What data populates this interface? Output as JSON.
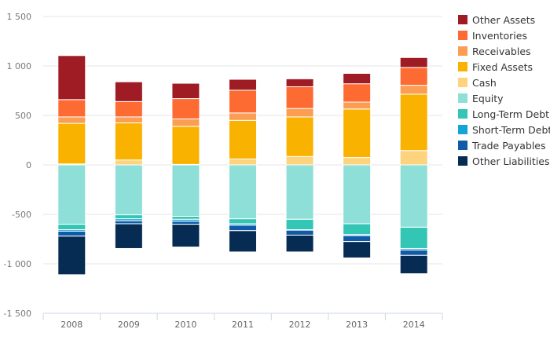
{
  "chart_data": {
    "type": "bar",
    "stacked": true,
    "categories": [
      "2008",
      "2009",
      "2010",
      "2011",
      "2012",
      "2013",
      "2014"
    ],
    "ylim": [
      -1500,
      1500
    ],
    "yticks": [
      1500,
      1000,
      500,
      0,
      -500,
      -1000,
      -1500
    ],
    "ytick_labels": [
      "1 500",
      "1 000",
      "500",
      "0",
      "-500",
      "-1 000",
      "-1 500"
    ],
    "grid": true,
    "legend_position": "right",
    "series": [
      {
        "name": "Cash",
        "color": "#fdd37e",
        "values": [
          10,
          50,
          5,
          60,
          85,
          75,
          145
        ]
      },
      {
        "name": "Fixed Assets",
        "color": "#f9b200",
        "values": [
          410,
          375,
          385,
          390,
          400,
          490,
          570
        ]
      },
      {
        "name": "Receivables",
        "color": "#fb9d52",
        "values": [
          65,
          60,
          75,
          75,
          85,
          70,
          90
        ]
      },
      {
        "name": "Inventories",
        "color": "#fd6b33",
        "values": [
          175,
          155,
          205,
          230,
          220,
          185,
          180
        ]
      },
      {
        "name": "Other Assets",
        "color": "#a01c25",
        "values": [
          445,
          200,
          155,
          110,
          80,
          105,
          100
        ]
      },
      {
        "name": "Equity",
        "color": "#8ddfd8",
        "values": [
          -600,
          -505,
          -520,
          -545,
          -550,
          -595,
          -630
        ]
      },
      {
        "name": "Long-Term Debt",
        "color": "#33c6b5",
        "values": [
          -55,
          -40,
          -30,
          -50,
          -105,
          -110,
          -215
        ]
      },
      {
        "name": "Short-Term Debt",
        "color": "#14a5d4",
        "values": [
          -15,
          -20,
          -20,
          -15,
          -5,
          -10,
          -15
        ]
      },
      {
        "name": "Trade Payables",
        "color": "#0f5ba8",
        "values": [
          -50,
          -30,
          -30,
          -55,
          -50,
          -60,
          -55
        ]
      },
      {
        "name": "Other Liabilities",
        "color": "#062c53",
        "values": [
          -390,
          -250,
          -230,
          -215,
          -170,
          -165,
          -185
        ]
      }
    ],
    "legend_order": [
      "Other Assets",
      "Inventories",
      "Receivables",
      "Fixed Assets",
      "Cash",
      "Equity",
      "Long-Term Debt",
      "Short-Term Debt",
      "Trade Payables",
      "Other Liabilities"
    ]
  }
}
